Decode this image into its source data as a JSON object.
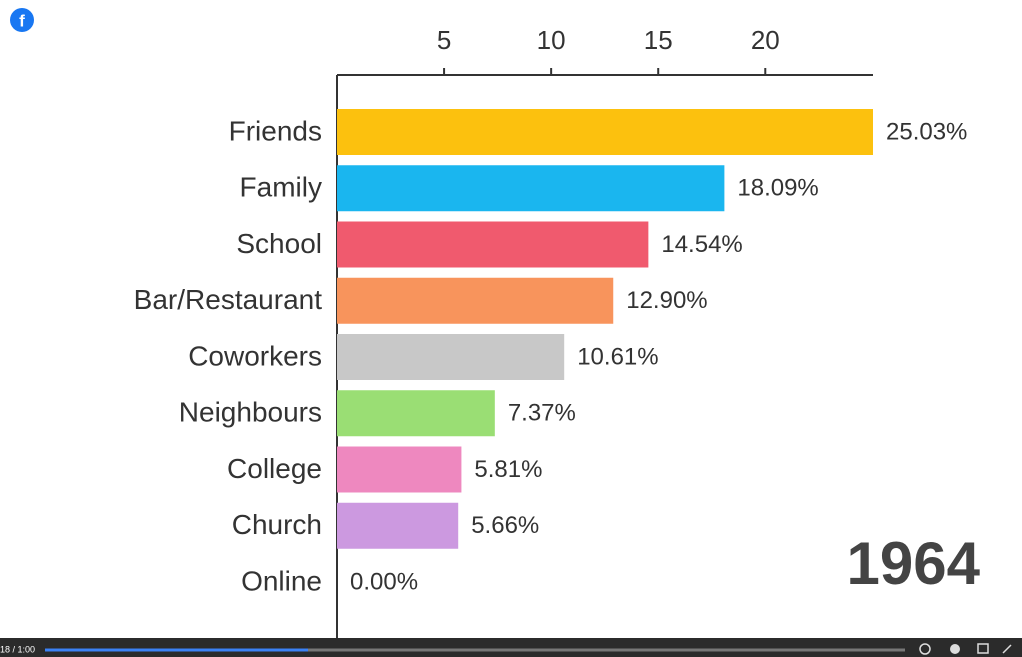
{
  "chart_data": {
    "type": "barh",
    "categories": [
      "Friends",
      "Family",
      "School",
      "Bar/Restaurant",
      "Coworkers",
      "Neighbours",
      "College",
      "Church",
      "Online"
    ],
    "values": [
      25.03,
      18.09,
      14.54,
      12.9,
      10.61,
      7.37,
      5.81,
      5.66,
      0.0
    ],
    "value_labels": [
      "25.03%",
      "18.09%",
      "14.54%",
      "12.90%",
      "10.61%",
      "7.37%",
      "5.81%",
      "5.66%",
      "0.00%"
    ],
    "colors": [
      "#fcc10e",
      "#1ab6ef",
      "#f05a6e",
      "#f8945c",
      "#c8c8c8",
      "#9ade74",
      "#ee88bf",
      "#cc99e0",
      "#6fa8dc"
    ],
    "xlim": [
      0,
      25.03
    ],
    "xticks": [
      5,
      10,
      15,
      20
    ],
    "annotation": "1964"
  },
  "player": {
    "time": "18 / 1:00"
  }
}
